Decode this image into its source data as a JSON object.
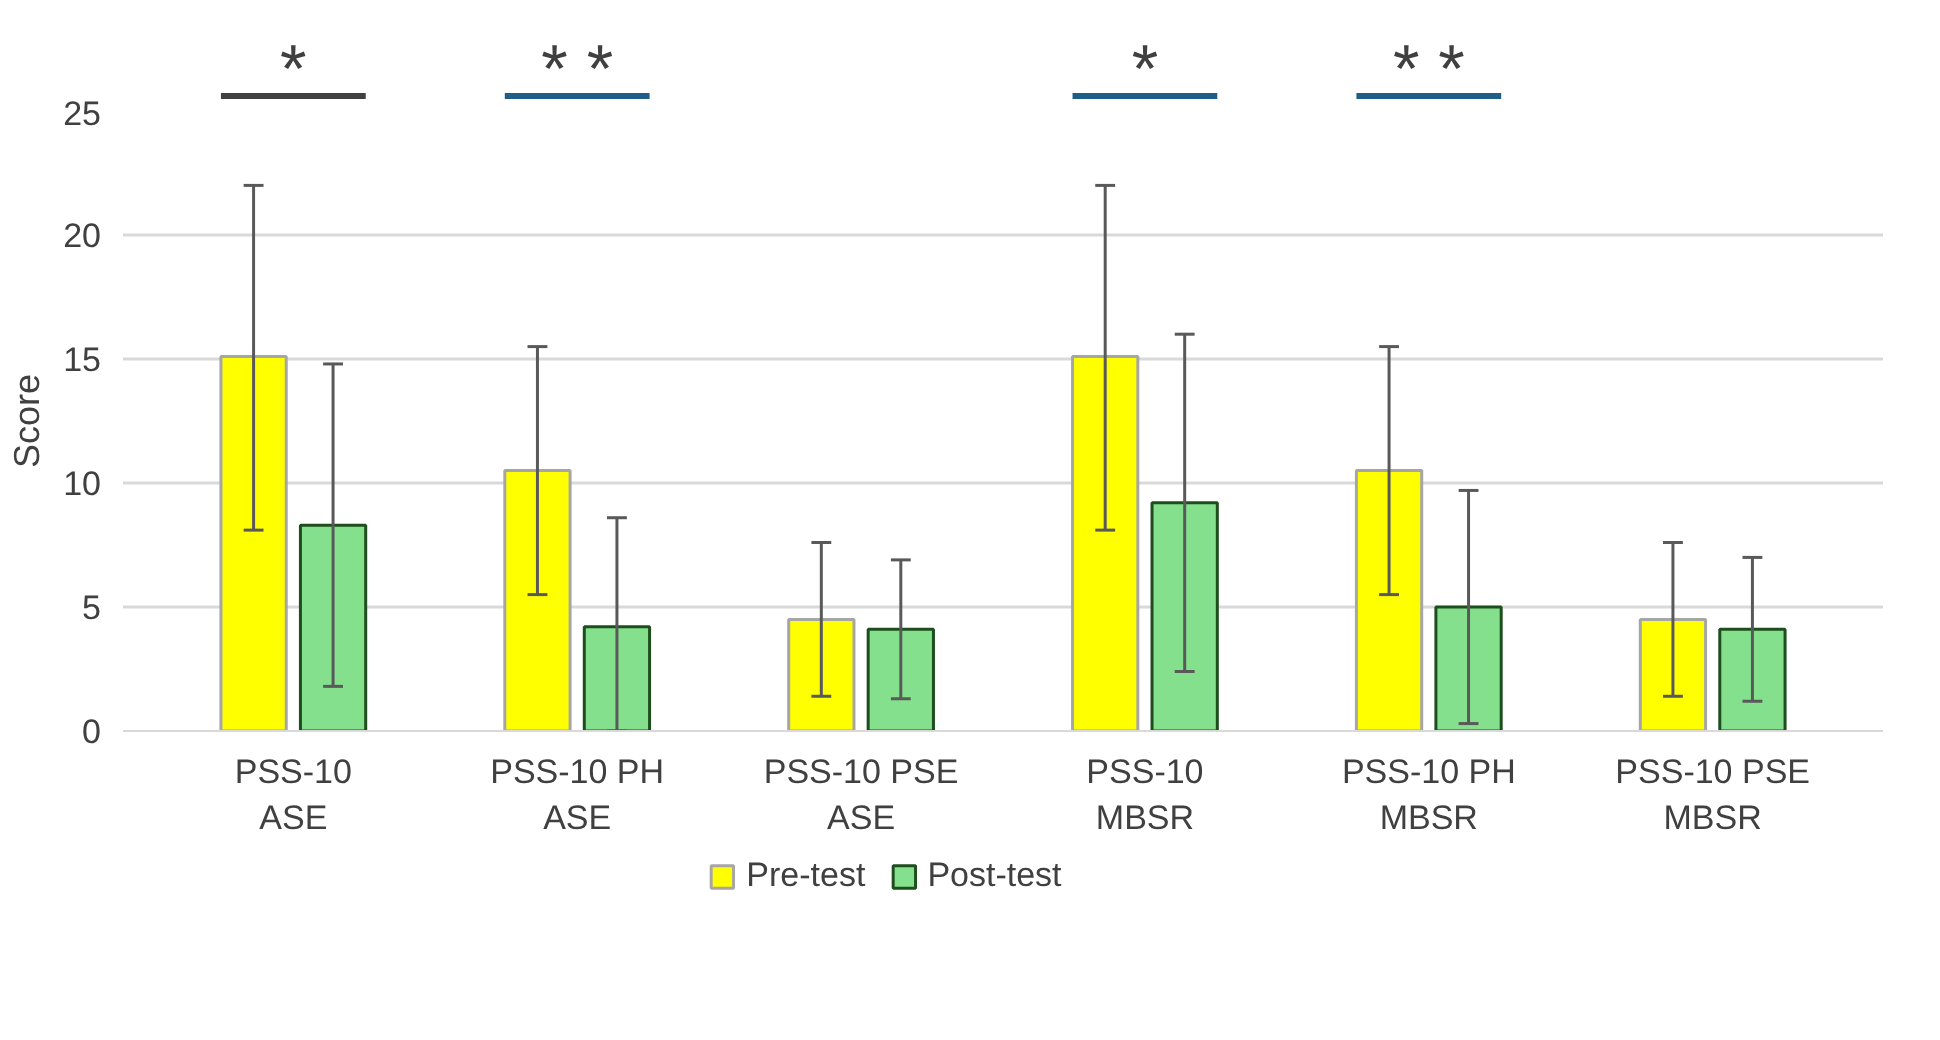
{
  "chart_data": {
    "type": "bar",
    "ylabel": "Score",
    "categories": [
      "PSS-10\nASE",
      "PSS-10 PH\nASE",
      "PSS-10 PSE\nASE",
      "PSS-10\nMBSR",
      "PSS-10 PH\nMBSR",
      "PSS-10 PSE\nMBSR"
    ],
    "series": [
      {
        "name": "Pre-test",
        "color": "#ffff00",
        "values": [
          15.1,
          10.5,
          4.5,
          15.1,
          10.5,
          4.5
        ],
        "errors": [
          [
            8.1,
            22
          ],
          [
            5.5,
            15.5
          ],
          [
            1.4,
            7.6
          ],
          [
            8.1,
            22
          ],
          [
            5.5,
            15.5
          ],
          [
            1.4,
            7.6
          ]
        ]
      },
      {
        "name": "Post-test",
        "color": "#85e08d",
        "values": [
          8.3,
          4.2,
          4.1,
          9.2,
          5.0,
          4.1
        ],
        "errors": [
          [
            1.8,
            14.8
          ],
          [
            0,
            8.6
          ],
          [
            1.3,
            6.9
          ],
          [
            2.4,
            16.0
          ],
          [
            0.3,
            9.7
          ],
          [
            1.2,
            7.0
          ]
        ]
      }
    ],
    "ylim": [
      0,
      25
    ],
    "yticks": [
      0,
      5,
      10,
      15,
      20,
      25
    ],
    "grid": "y",
    "legend": "bottom",
    "annotations": [
      "*",
      "* *",
      "*",
      "* *"
    ]
  }
}
